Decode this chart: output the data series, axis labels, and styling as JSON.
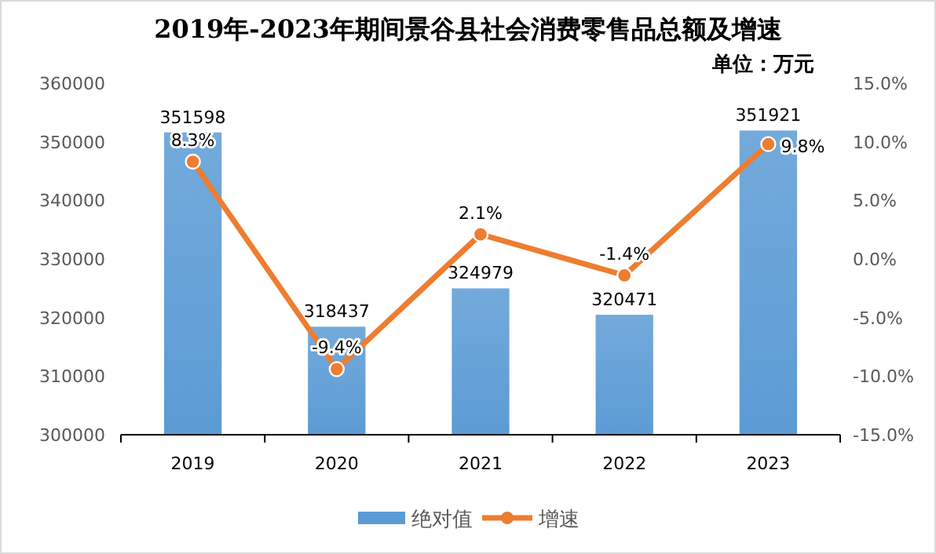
{
  "chart_data": {
    "type": "bar",
    "title": "2019年-2023年期间景谷县社会消费零售品总额及增速",
    "annotations": [
      "单位：万元"
    ],
    "categories": [
      "2019",
      "2020",
      "2021",
      "2022",
      "2023"
    ],
    "series": [
      {
        "name": "绝对值",
        "color": "#5b9bd5",
        "values": [
          351598,
          318437,
          324979,
          320471,
          351921
        ]
      },
      {
        "name": "增速",
        "type": "line",
        "axis": "y2",
        "color": "#ed7d31",
        "marker": "circle",
        "values": [
          8.3,
          -9.4,
          2.1,
          -1.4,
          9.8
        ],
        "value_labels": [
          "8.3%",
          "-9.4%",
          "2.1%",
          "-1.4%",
          "9.8%"
        ]
      }
    ],
    "data_labels": true,
    "ylim": [
      300000,
      360000
    ],
    "yticks": [
      300000,
      310000,
      320000,
      330000,
      340000,
      350000,
      360000
    ],
    "y2lim": [
      -15,
      15
    ],
    "y2ticks": [
      {
        "value": -15,
        "label": "-15.0%"
      },
      {
        "value": -10,
        "label": "-10.0%"
      },
      {
        "value": -5,
        "label": "-5.0%"
      },
      {
        "value": 0,
        "label": "0.0%"
      },
      {
        "value": 5,
        "label": "5.0%"
      },
      {
        "value": 10,
        "label": "10.0%"
      },
      {
        "value": 15,
        "label": "15.0%"
      }
    ],
    "grid": false,
    "legend": "bottom"
  }
}
